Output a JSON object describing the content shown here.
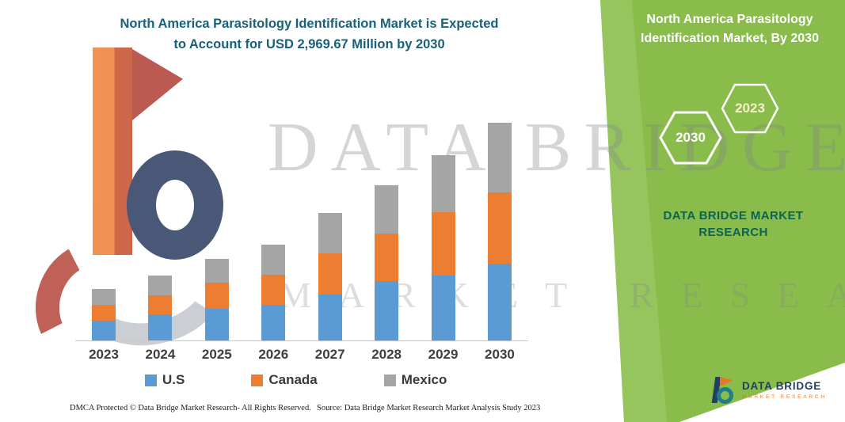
{
  "title": {
    "lines": [
      "North America Parasitology Identification Market is Expected",
      "to Account for USD 2,969.67 Million by 2030"
    ]
  },
  "side_panel": {
    "heading_lines": [
      "North America Parasitology",
      "Identification Market, By 2030"
    ],
    "hexagons": [
      {
        "label": "2030"
      },
      {
        "label": "2023"
      }
    ],
    "brand_lines": [
      "DATA BRIDGE MARKET",
      "RESEARCH"
    ],
    "panel_color": "#89bc4b"
  },
  "chart_data": {
    "type": "bar",
    "subtype": "stacked-vertical",
    "unit": "USD Million",
    "categories": [
      "2023",
      "2024",
      "2025",
      "2026",
      "2027",
      "2028",
      "2029",
      "2030"
    ],
    "series": [
      {
        "name": "U.S",
        "color": "#5b9bd5",
        "values": [
          270,
          356,
          432,
          486,
          626,
          810,
          885,
          1047.67
        ]
      },
      {
        "name": "Canada",
        "color": "#ed7d31",
        "values": [
          216,
          259,
          356,
          410,
          561,
          648,
          864,
          972
        ]
      },
      {
        "name": "Mexico",
        "color": "#a5a5a5",
        "values": [
          216,
          270,
          324,
          410,
          550,
          658,
          777,
          950
        ]
      }
    ],
    "totals": [
      702,
      885,
      1112,
      1306,
      1737,
      2116,
      2526,
      2969.67
    ],
    "highlight_total_2030": 2969.67,
    "y_axis_visible": false,
    "grid": false,
    "legend_position": "bottom"
  },
  "watermark": {
    "line1": "DATA BRIDGE",
    "line2": "MARKET RESEARCH"
  },
  "footer": {
    "dmca": "DMCA Protected © Data Bridge Market Research-  All Rights Reserved.",
    "source": "Source: Data Bridge Market Research  Market Analysis Study 2023"
  },
  "logo": {
    "name": "DATA BRIDGE",
    "sub": "MARKET RESEARCH"
  }
}
